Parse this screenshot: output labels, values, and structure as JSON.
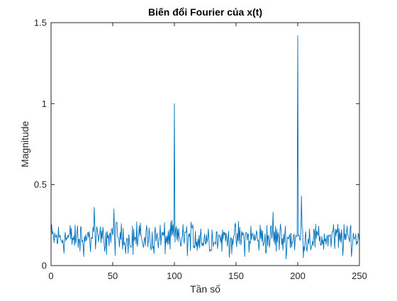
{
  "chart_data": {
    "type": "line",
    "title": "Biến đổi Fourier của x(t)",
    "xlabel": "Tần số",
    "ylabel": "Magnitude",
    "xlim": [
      0,
      250
    ],
    "ylim": [
      0,
      1.5
    ],
    "xticks": [
      0,
      50,
      100,
      150,
      200,
      250
    ],
    "xtick_labels": [
      "0",
      "50",
      "100",
      "150",
      "200",
      "250"
    ],
    "yticks": [
      0,
      0.5,
      1,
      1.5
    ],
    "ytick_labels": [
      "0",
      "0.5",
      "1",
      "1.5"
    ],
    "grid": false,
    "box": true,
    "line_color": "#0072BD",
    "series": [
      {
        "description": "noisy magnitude spectrum sampled at 0.5 Hz steps",
        "x_start": 0,
        "x_step": 0.5,
        "noise_range": [
          0.02,
          0.28
        ],
        "peaks": [
          {
            "x": 100,
            "y": 1.0
          },
          {
            "x": 200,
            "y": 1.42
          },
          {
            "x": 203,
            "y": 0.43
          },
          {
            "x": 180,
            "y": 0.33
          },
          {
            "x": 35,
            "y": 0.36
          },
          {
            "x": 51,
            "y": 0.35
          }
        ]
      }
    ]
  }
}
